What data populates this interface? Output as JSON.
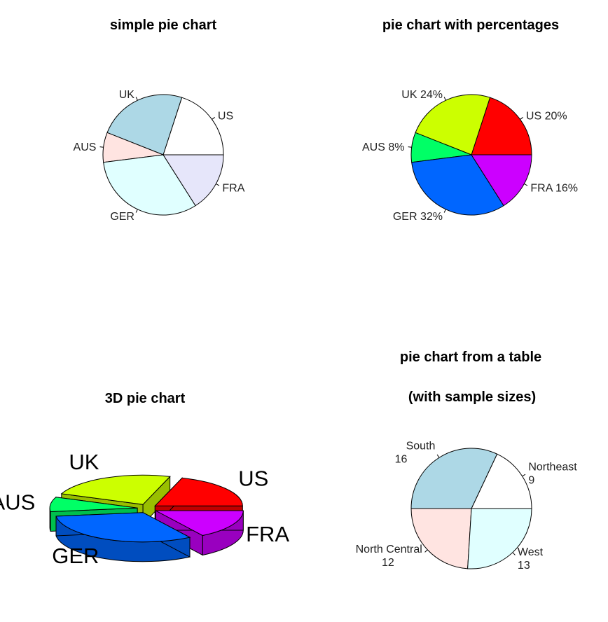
{
  "chart_data": [
    {
      "type": "pie",
      "title": "simple pie chart",
      "slices": [
        {
          "label": "US",
          "value": 5,
          "color": "#ffffff"
        },
        {
          "label": "UK",
          "value": 6,
          "color": "#add8e6"
        },
        {
          "label": "AUS",
          "value": 2,
          "color": "#ffe4e1"
        },
        {
          "label": "GER",
          "value": 8,
          "color": "#e0ffff"
        },
        {
          "label": "FRA",
          "value": 4,
          "color": "#e6e6fa"
        }
      ]
    },
    {
      "type": "pie",
      "title": "pie chart with percentages",
      "slices": [
        {
          "label": "US 20%",
          "value": 5,
          "color": "#ff0000"
        },
        {
          "label": "UK 24%",
          "value": 6,
          "color": "#ccff00"
        },
        {
          "label": "AUS 8%",
          "value": 2,
          "color": "#00ff66"
        },
        {
          "label": "GER 32%",
          "value": 8,
          "color": "#0066ff"
        },
        {
          "label": "FRA 16%",
          "value": 4,
          "color": "#cc00ff"
        }
      ]
    },
    {
      "type": "pie",
      "title": "3D pie chart",
      "explode": true,
      "slices": [
        {
          "label": "US",
          "value": 5,
          "color": "#ff0000"
        },
        {
          "label": "UK",
          "value": 6,
          "color": "#ccff00"
        },
        {
          "label": "AUS",
          "value": 2,
          "color": "#00ff66"
        },
        {
          "label": "GER",
          "value": 8,
          "color": "#0066ff"
        },
        {
          "label": "FRA",
          "value": 4,
          "color": "#cc00ff"
        }
      ]
    },
    {
      "type": "pie",
      "title": "pie chart from a table",
      "subtitle": "(with sample sizes)",
      "slices": [
        {
          "label": "Northeast",
          "count": "9",
          "value": 9,
          "color": "#ffffff"
        },
        {
          "label": "South",
          "count": "16",
          "value": 16,
          "color": "#add8e6"
        },
        {
          "label": "North Central",
          "count": "12",
          "value": 12,
          "color": "#ffe4e1"
        },
        {
          "label": "West",
          "count": "13",
          "value": 13,
          "color": "#e0ffff"
        }
      ]
    }
  ]
}
